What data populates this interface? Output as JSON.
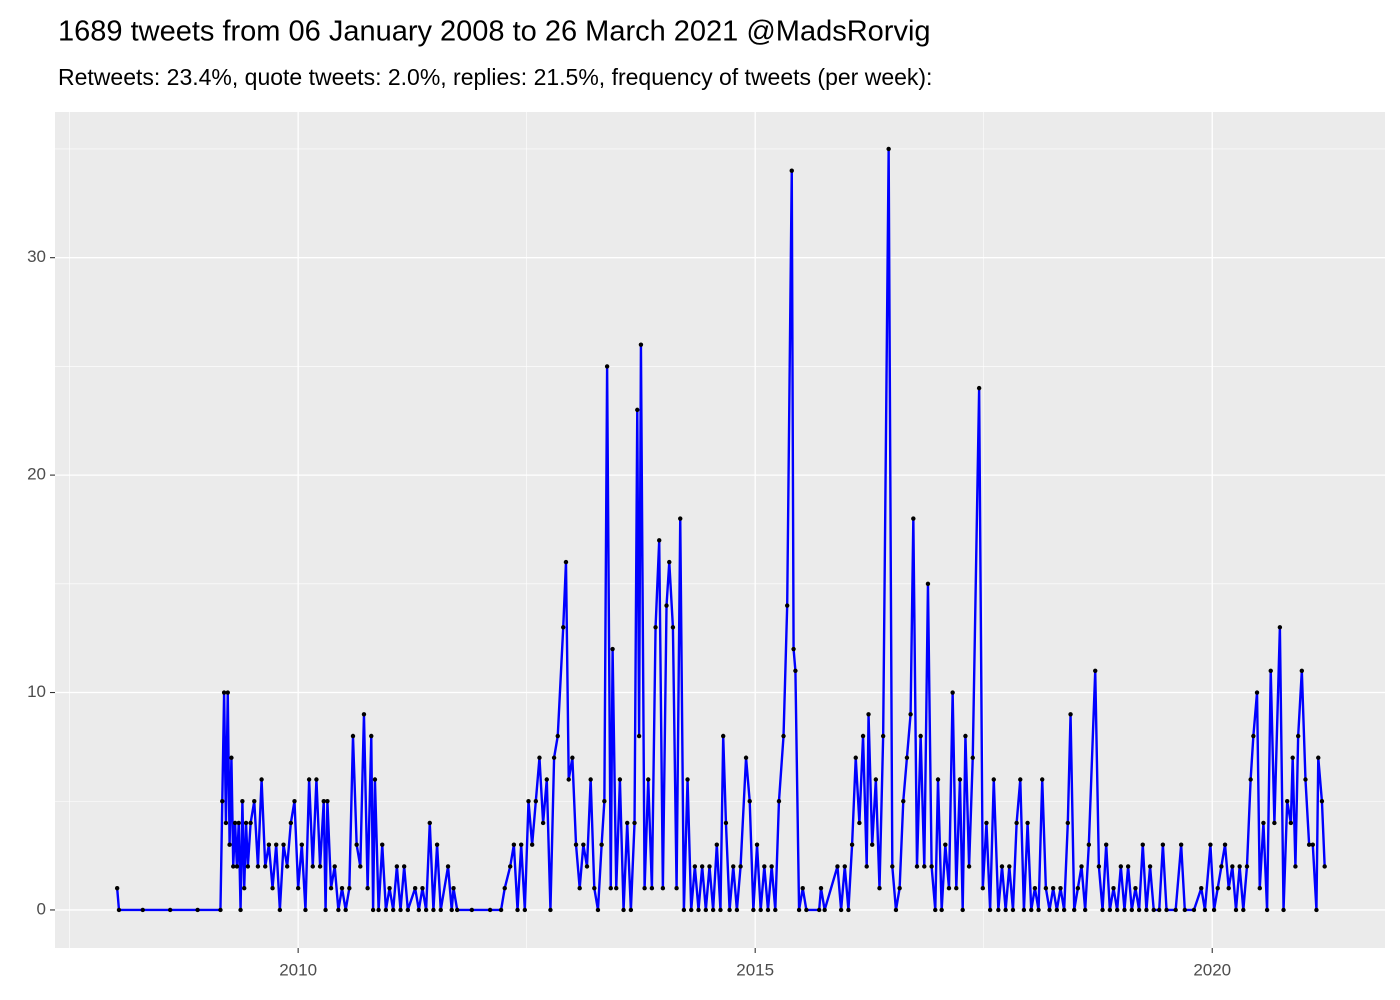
{
  "chart_data": {
    "type": "line",
    "title": "1689 tweets from 06 January 2008 to 26 March 2021 @MadsRorvig",
    "subtitle": "Retweets: 23.4%, quote tweets: 2.0%, replies: 21.5%, frequency of tweets (per week):",
    "x": [
      2008.02,
      2008.04,
      2008.3,
      2008.6,
      2008.9,
      2009.15,
      2009.17,
      2009.19,
      2009.21,
      2009.23,
      2009.25,
      2009.27,
      2009.29,
      2009.31,
      2009.33,
      2009.35,
      2009.37,
      2009.39,
      2009.41,
      2009.43,
      2009.45,
      2009.48,
      2009.52,
      2009.56,
      2009.6,
      2009.64,
      2009.68,
      2009.72,
      2009.76,
      2009.8,
      2009.84,
      2009.88,
      2009.92,
      2009.96,
      2010.0,
      2010.04,
      2010.08,
      2010.12,
      2010.16,
      2010.2,
      2010.24,
      2010.28,
      2010.3,
      2010.32,
      2010.36,
      2010.4,
      2010.44,
      2010.48,
      2010.52,
      2010.56,
      2010.6,
      2010.64,
      2010.68,
      2010.72,
      2010.76,
      2010.8,
      2010.82,
      2010.84,
      2010.88,
      2010.92,
      2010.96,
      2011.0,
      2011.04,
      2011.08,
      2011.12,
      2011.16,
      2011.2,
      2011.28,
      2011.32,
      2011.36,
      2011.4,
      2011.44,
      2011.48,
      2011.52,
      2011.56,
      2011.64,
      2011.68,
      2011.7,
      2011.74,
      2011.9,
      2012.1,
      2012.22,
      2012.26,
      2012.32,
      2012.36,
      2012.4,
      2012.44,
      2012.48,
      2012.52,
      2012.56,
      2012.6,
      2012.64,
      2012.68,
      2012.72,
      2012.76,
      2012.8,
      2012.84,
      2012.9,
      2012.93,
      2012.96,
      2013.0,
      2013.04,
      2013.08,
      2013.12,
      2013.16,
      2013.2,
      2013.24,
      2013.28,
      2013.32,
      2013.35,
      2013.38,
      2013.42,
      2013.44,
      2013.48,
      2013.52,
      2013.56,
      2013.6,
      2013.64,
      2013.68,
      2013.71,
      2013.73,
      2013.75,
      2013.79,
      2013.83,
      2013.87,
      2013.91,
      2013.95,
      2013.99,
      2014.03,
      2014.06,
      2014.1,
      2014.14,
      2014.18,
      2014.22,
      2014.26,
      2014.3,
      2014.34,
      2014.38,
      2014.42,
      2014.46,
      2014.5,
      2014.54,
      2014.58,
      2014.62,
      2014.65,
      2014.68,
      2014.72,
      2014.76,
      2014.8,
      2014.84,
      2014.9,
      2014.94,
      2014.98,
      2015.02,
      2015.06,
      2015.1,
      2015.14,
      2015.18,
      2015.22,
      2015.26,
      2015.31,
      2015.35,
      2015.4,
      2015.42,
      2015.44,
      2015.48,
      2015.52,
      2015.56,
      2015.7,
      2015.72,
      2015.76,
      2015.9,
      2015.94,
      2015.98,
      2016.02,
      2016.06,
      2016.1,
      2016.14,
      2016.18,
      2016.22,
      2016.24,
      2016.28,
      2016.32,
      2016.36,
      2016.4,
      2016.46,
      2016.5,
      2016.54,
      2016.58,
      2016.62,
      2016.66,
      2016.7,
      2016.73,
      2016.77,
      2016.81,
      2016.85,
      2016.89,
      2016.93,
      2016.97,
      2017.0,
      2017.04,
      2017.08,
      2017.12,
      2017.16,
      2017.2,
      2017.24,
      2017.27,
      2017.3,
      2017.34,
      2017.38,
      2017.45,
      2017.49,
      2017.53,
      2017.57,
      2017.61,
      2017.66,
      2017.7,
      2017.74,
      2017.78,
      2017.82,
      2017.86,
      2017.9,
      2017.94,
      2017.98,
      2018.02,
      2018.06,
      2018.1,
      2018.14,
      2018.18,
      2018.22,
      2018.26,
      2018.3,
      2018.34,
      2018.38,
      2018.42,
      2018.45,
      2018.49,
      2018.53,
      2018.57,
      2018.61,
      2018.65,
      2018.72,
      2018.76,
      2018.8,
      2018.84,
      2018.88,
      2018.92,
      2018.96,
      2019.0,
      2019.04,
      2019.08,
      2019.12,
      2019.16,
      2019.2,
      2019.24,
      2019.28,
      2019.32,
      2019.36,
      2019.42,
      2019.46,
      2019.5,
      2019.6,
      2019.66,
      2019.7,
      2019.8,
      2019.88,
      2019.92,
      2019.98,
      2020.02,
      2020.06,
      2020.1,
      2020.14,
      2020.18,
      2020.22,
      2020.26,
      2020.3,
      2020.34,
      2020.38,
      2020.42,
      2020.45,
      2020.49,
      2020.52,
      2020.56,
      2020.6,
      2020.64,
      2020.68,
      2020.74,
      2020.78,
      2020.82,
      2020.86,
      2020.88,
      2020.91,
      2020.94,
      2020.98,
      2021.02,
      2021.06,
      2021.1,
      2021.14,
      2021.16,
      2021.2,
      2021.23
    ],
    "values": [
      1,
      0,
      0,
      0,
      0,
      0,
      5,
      10,
      4,
      10,
      3,
      7,
      2,
      4,
      2,
      4,
      0,
      5,
      1,
      4,
      2,
      4,
      5,
      2,
      6,
      2,
      3,
      1,
      3,
      0,
      3,
      2,
      4,
      5,
      1,
      3,
      0,
      6,
      2,
      6,
      2,
      5,
      0,
      5,
      1,
      2,
      0,
      1,
      0,
      1,
      8,
      3,
      2,
      9,
      1,
      8,
      0,
      6,
      0,
      3,
      0,
      1,
      0,
      2,
      0,
      2,
      0,
      1,
      0,
      1,
      0,
      4,
      0,
      3,
      0,
      2,
      0,
      1,
      0,
      0,
      0,
      0,
      1,
      2,
      3,
      0,
      3,
      0,
      5,
      3,
      5,
      7,
      4,
      6,
      0,
      7,
      8,
      13,
      16,
      6,
      7,
      3,
      1,
      3,
      2,
      6,
      1,
      0,
      3,
      5,
      25,
      1,
      12,
      1,
      6,
      0,
      4,
      0,
      4,
      23,
      8,
      26,
      1,
      6,
      1,
      13,
      17,
      1,
      14,
      16,
      13,
      1,
      18,
      0,
      6,
      0,
      2,
      0,
      2,
      0,
      2,
      0,
      3,
      0,
      8,
      4,
      0,
      2,
      0,
      2,
      7,
      5,
      0,
      3,
      0,
      2,
      0,
      2,
      0,
      5,
      8,
      14,
      34,
      12,
      11,
      0,
      1,
      0,
      0,
      1,
      0,
      2,
      0,
      2,
      0,
      3,
      7,
      4,
      8,
      2,
      9,
      3,
      6,
      1,
      8,
      35,
      2,
      0,
      1,
      5,
      7,
      9,
      18,
      2,
      8,
      2,
      15,
      2,
      0,
      6,
      0,
      3,
      1,
      10,
      1,
      6,
      0,
      8,
      2,
      7,
      24,
      1,
      4,
      0,
      6,
      0,
      2,
      0,
      2,
      0,
      4,
      6,
      0,
      4,
      0,
      1,
      0,
      6,
      1,
      0,
      1,
      0,
      1,
      0,
      4,
      9,
      0,
      1,
      2,
      0,
      3,
      11,
      2,
      0,
      3,
      0,
      1,
      0,
      2,
      0,
      2,
      0,
      1,
      0,
      3,
      0,
      2,
      0,
      0,
      3,
      0,
      0,
      3,
      0,
      0,
      1,
      0,
      3,
      0,
      1,
      2,
      3,
      1,
      2,
      0,
      2,
      0,
      2,
      6,
      8,
      10,
      1,
      4,
      0,
      11,
      4,
      13,
      0,
      5,
      4,
      7,
      2,
      8,
      11,
      6,
      3,
      3,
      0,
      7,
      5,
      2
    ],
    "color": "#0000ff",
    "point_color": "#000000",
    "xlim": [
      2007.34,
      2021.89
    ],
    "xticks": [
      2010,
      2015,
      2020
    ],
    "ylim": [
      -1.75,
      36.7
    ],
    "yticks": [
      0,
      10,
      20,
      30
    ],
    "grid": true
  }
}
